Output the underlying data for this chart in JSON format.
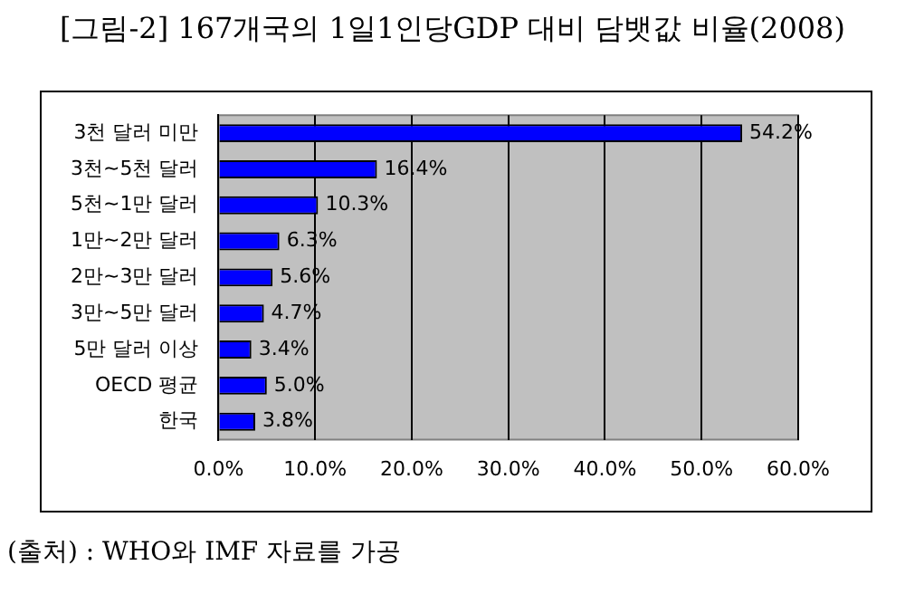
{
  "chart_data": {
    "type": "bar",
    "orientation": "horizontal",
    "title": "[그림-2] 167개국의 1일1인당GDP 대비 담뱃값 비율(2008)",
    "categories": [
      "3천 달러 미만",
      "3천~5천 달러",
      "5천~1만 달러",
      "1만~2만 달러",
      "2만~3만 달러",
      "3만~5만 달러",
      "5만 달러 이상",
      "OECD 평균",
      "한국"
    ],
    "values": [
      54.2,
      16.4,
      10.3,
      6.3,
      5.6,
      4.7,
      3.4,
      5.0,
      3.8
    ],
    "value_labels": [
      "54.2%",
      "16.4%",
      "10.3%",
      "6.3%",
      "5.6%",
      "4.7%",
      "3.4%",
      "5.0%",
      "3.8%"
    ],
    "color": "#0000ff",
    "xlim": [
      0,
      60
    ],
    "xticks": [
      {
        "value": 0,
        "label": "0.0%"
      },
      {
        "value": 10,
        "label": "10.0%"
      },
      {
        "value": 20,
        "label": "20.0%"
      },
      {
        "value": 30,
        "label": "30.0%"
      },
      {
        "value": 40,
        "label": "40.0%"
      },
      {
        "value": 50,
        "label": "50.0%"
      },
      {
        "value": 60,
        "label": "60.0%"
      }
    ],
    "grid": "x",
    "legend": false,
    "annotations": [
      "(출처) : WHO와 IMF 자료를 가공"
    ]
  }
}
